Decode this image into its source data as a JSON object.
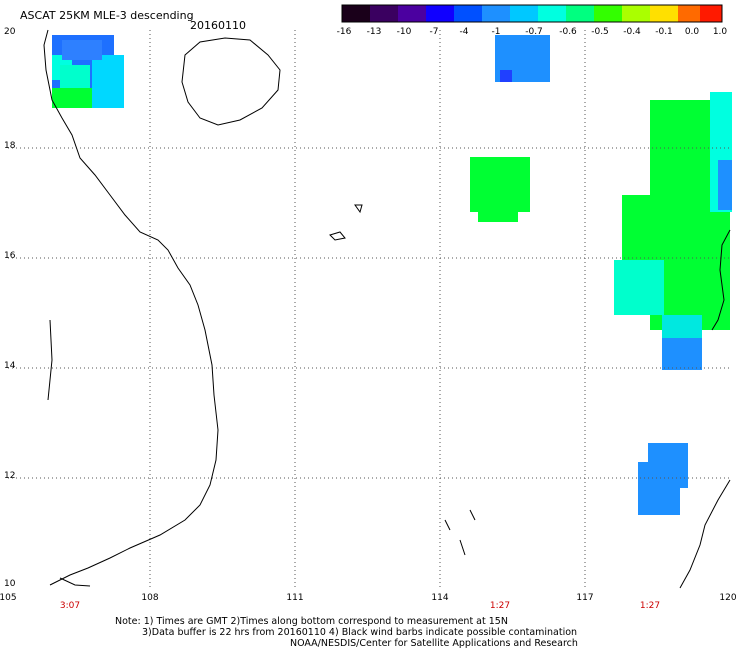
{
  "header": {
    "title": "ASCAT 25KM MLE-3 descending",
    "date": "20160110"
  },
  "colorbar": {
    "ticks": [
      "-16",
      "-13",
      "-10",
      "-7",
      "-4",
      "-1",
      "-0.7",
      "-0.6",
      "-0.5",
      "-0.4",
      "-0.1",
      "0.0",
      "1.0"
    ],
    "colors": [
      "#1a001a",
      "#3a0060",
      "#4b00a0",
      "#2000ff",
      "#0050ff",
      "#1e90ff",
      "#00c8ff",
      "#00ffe0",
      "#00ff80",
      "#33ff00",
      "#aaff00",
      "#ffe000",
      "#ff6a00",
      "#ff1a00"
    ]
  },
  "axes": {
    "lat_labels": [
      "20",
      "18",
      "16",
      "14",
      "12",
      "10"
    ],
    "lon_labels": [
      "105",
      "108",
      "111",
      "114",
      "117",
      "120"
    ],
    "times": [
      "3:07",
      "1:27",
      "1:27"
    ]
  },
  "notes": {
    "line1": "Note: 1) Times are GMT 2)Times along bottom correspond to measurement at 15N",
    "line2": "3)Data buffer is 22 hrs from 20160110 4) Black wind barbs indicate possible contamination",
    "line3": "NOAA/NESDIS/Center for Satellite Applications and Research"
  },
  "colors": {
    "blue": "#1e90ff",
    "deep_blue": "#2040ff",
    "cyan": "#00ffe0",
    "green": "#00ff33",
    "grid": "#555555"
  }
}
